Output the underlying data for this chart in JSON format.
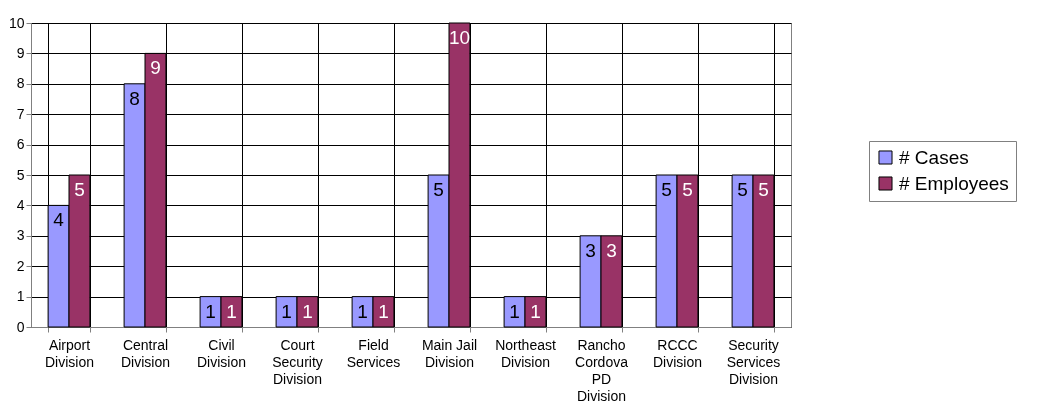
{
  "chart_data": {
    "type": "bar",
    "categories": [
      "Airport Division",
      "Central Division",
      "Civil Division",
      "Court Security Division",
      "Field Services",
      "Main Jail Division",
      "Northeast Division",
      "Rancho Cordova PD Division",
      "RCCC Division",
      "Security Services Division"
    ],
    "series": [
      {
        "name": "# Cases",
        "color": "#9999ff",
        "values": [
          4,
          8,
          1,
          1,
          1,
          5,
          1,
          3,
          5,
          5
        ]
      },
      {
        "name": "# Employees",
        "color": "#993366",
        "values": [
          5,
          9,
          1,
          1,
          1,
          10,
          1,
          3,
          5,
          5
        ]
      }
    ],
    "ylim": [
      0,
      10
    ],
    "yticks": [
      0,
      1,
      2,
      3,
      4,
      5,
      6,
      7,
      8,
      9,
      10
    ],
    "grid": true,
    "legend": "right",
    "data_labels": true
  }
}
